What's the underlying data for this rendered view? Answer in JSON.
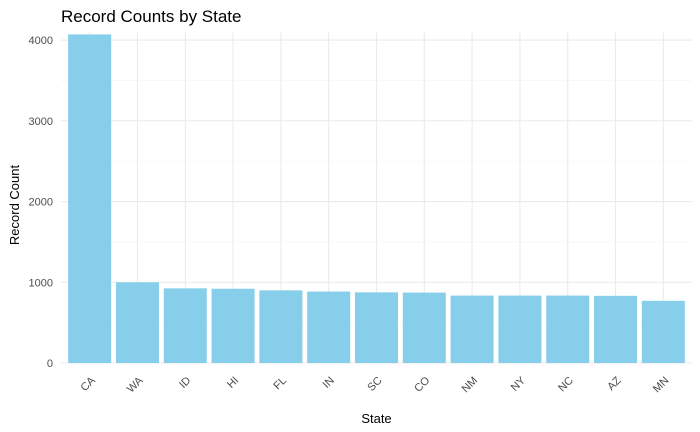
{
  "chart_data": {
    "type": "bar",
    "title": "Record Counts by State",
    "xlabel": "State",
    "ylabel": "Record Count",
    "categories": [
      "CA",
      "WA",
      "ID",
      "HI",
      "FL",
      "IN",
      "SC",
      "CO",
      "NM",
      "NY",
      "NC",
      "AZ",
      "MN"
    ],
    "values": [
      4070,
      1000,
      925,
      920,
      900,
      885,
      875,
      872,
      835,
      835,
      835,
      832,
      770
    ],
    "ylim": [
      0,
      4100
    ],
    "yticks": [
      0,
      1000,
      2000,
      3000,
      4000
    ],
    "ytick_labels": [
      "0",
      "1000",
      "2000",
      "3000",
      "4000"
    ],
    "grid": true,
    "legend": "none",
    "colors": {
      "bar": "#87CEEB",
      "grid_major": "#ebebeb",
      "grid_minor": "#f4f4f4",
      "background": "#ffffff"
    }
  }
}
